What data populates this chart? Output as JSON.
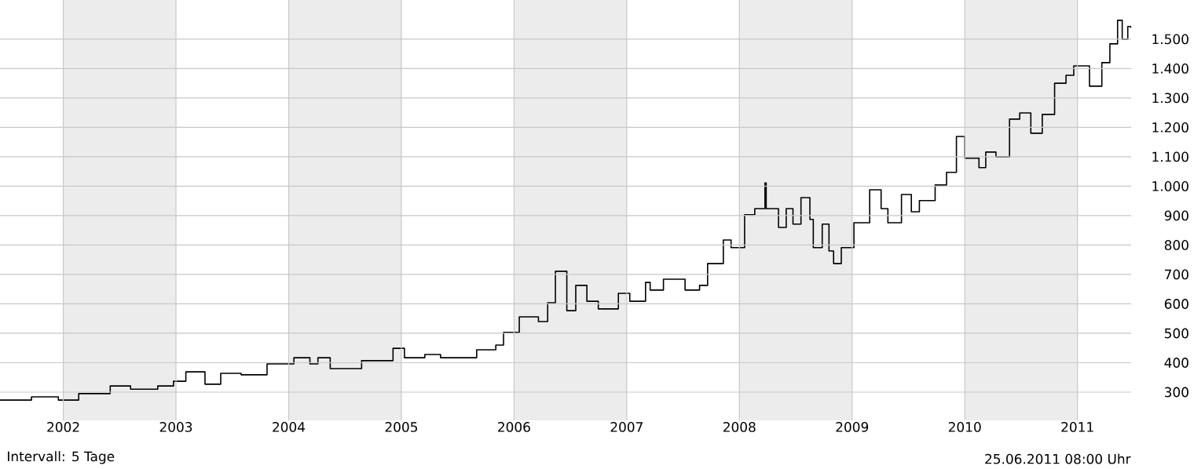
{
  "chart_data": {
    "type": "step",
    "x": [
      "2001-06-10",
      "2001-09-20",
      "2001-12-16",
      "2002-02-20",
      "2002-06-02",
      "2002-08-07",
      "2002-11-03",
      "2002-12-24",
      "2003-02-02",
      "2003-04-05",
      "2003-05-26",
      "2003-07-31",
      "2003-10-23",
      "2004-01-18",
      "2004-03-10",
      "2004-04-05",
      "2004-05-15",
      "2004-08-25",
      "2004-12-05",
      "2005-01-11",
      "2005-03-18",
      "2005-05-08",
      "2005-07-12",
      "2005-09-02",
      "2005-11-03",
      "2005-11-28",
      "2006-01-18",
      "2006-03-21",
      "2006-04-20",
      "2006-05-15",
      "2006-06-21",
      "2006-07-20",
      "2006-08-25",
      "2006-10-01",
      "2006-12-05",
      "2007-01-11",
      "2007-03-03",
      "2007-03-18",
      "2007-04-30",
      "2007-07-09",
      "2007-08-25",
      "2007-09-20",
      "2007-11-10",
      "2007-12-05",
      "2008-01-18",
      "2008-02-20",
      "2008-03-24",
      "2008-03-28",
      "2008-05-07",
      "2008-06-01",
      "2008-06-23",
      "2008-07-19",
      "2008-08-17",
      "2008-08-28",
      "2008-09-26",
      "2008-10-18",
      "2008-11-02",
      "2008-11-27",
      "2009-01-07",
      "2009-02-27",
      "2009-04-05",
      "2009-04-27",
      "2009-06-10",
      "2009-07-12",
      "2009-08-07",
      "2009-09-02",
      "2009-09-27",
      "2009-11-03",
      "2009-12-05",
      "2010-01-01",
      "2010-02-16",
      "2010-03-10",
      "2010-04-12",
      "2010-05-26",
      "2010-06-28",
      "2010-08-03",
      "2010-09-09",
      "2010-10-19",
      "2010-11-25",
      "2010-12-20",
      "2011-02-09",
      "2011-03-21",
      "2011-04-16",
      "2011-05-11",
      "2011-05-26",
      "2011-06-13",
      "2011-06-24"
    ],
    "series": [
      {
        "color": "#000000",
        "values": [
          273,
          284,
          273,
          295,
          321,
          310,
          321,
          337,
          369,
          327,
          364,
          359,
          396,
          417,
          396,
          417,
          380,
          407,
          449,
          417,
          428,
          417,
          417,
          444,
          460,
          503,
          556,
          540,
          604,
          711,
          577,
          663,
          609,
          583,
          636,
          609,
          673,
          647,
          684,
          647,
          663,
          737,
          817,
          791,
          903,
          924,
          1011,
          924,
          860,
          924,
          871,
          961,
          887,
          791,
          871,
          780,
          737,
          791,
          876,
          988,
          924,
          876,
          972,
          913,
          951,
          951,
          1004,
          1047,
          1169,
          1095,
          1063,
          1116,
          1100,
          1228,
          1249,
          1180,
          1244,
          1350,
          1377,
          1409,
          1340,
          1420,
          1484,
          1564,
          1500,
          1543,
          1537
        ]
      }
    ],
    "xlim": [
      "2001-06-10",
      "2011-06-24"
    ],
    "ylim": [
      204,
      1633
    ],
    "xticks": [
      "2002",
      "2003",
      "2004",
      "2005",
      "2006",
      "2007",
      "2008",
      "2009",
      "2010",
      "2011"
    ],
    "yticks": [
      300,
      400,
      500,
      600,
      700,
      800,
      900,
      {
        "value": 1000,
        "label": "1.000"
      },
      {
        "value": 1100,
        "label": "1.100"
      },
      {
        "value": 1200,
        "label": "1.200"
      },
      {
        "value": 1300,
        "label": "1.300"
      },
      {
        "value": 1400,
        "label": "1.400"
      },
      {
        "value": 1500,
        "label": "1.500"
      }
    ],
    "grid": true,
    "bands": [
      {
        "axis": "x",
        "from": "2002",
        "to": "2003",
        "color": "#ececec"
      },
      {
        "axis": "x",
        "from": "2004",
        "to": "2005",
        "color": "#ececec"
      },
      {
        "axis": "x",
        "from": "2006",
        "to": "2007",
        "color": "#ececec"
      },
      {
        "axis": "x",
        "from": "2008",
        "to": "2009",
        "color": "#ececec"
      },
      {
        "axis": "x",
        "from": "2010",
        "to": "2011",
        "color": "#ececec"
      }
    ],
    "annotations": [
      "Intervall: 5 Tage",
      "25.06.2011   08:00 Uhr"
    ]
  }
}
